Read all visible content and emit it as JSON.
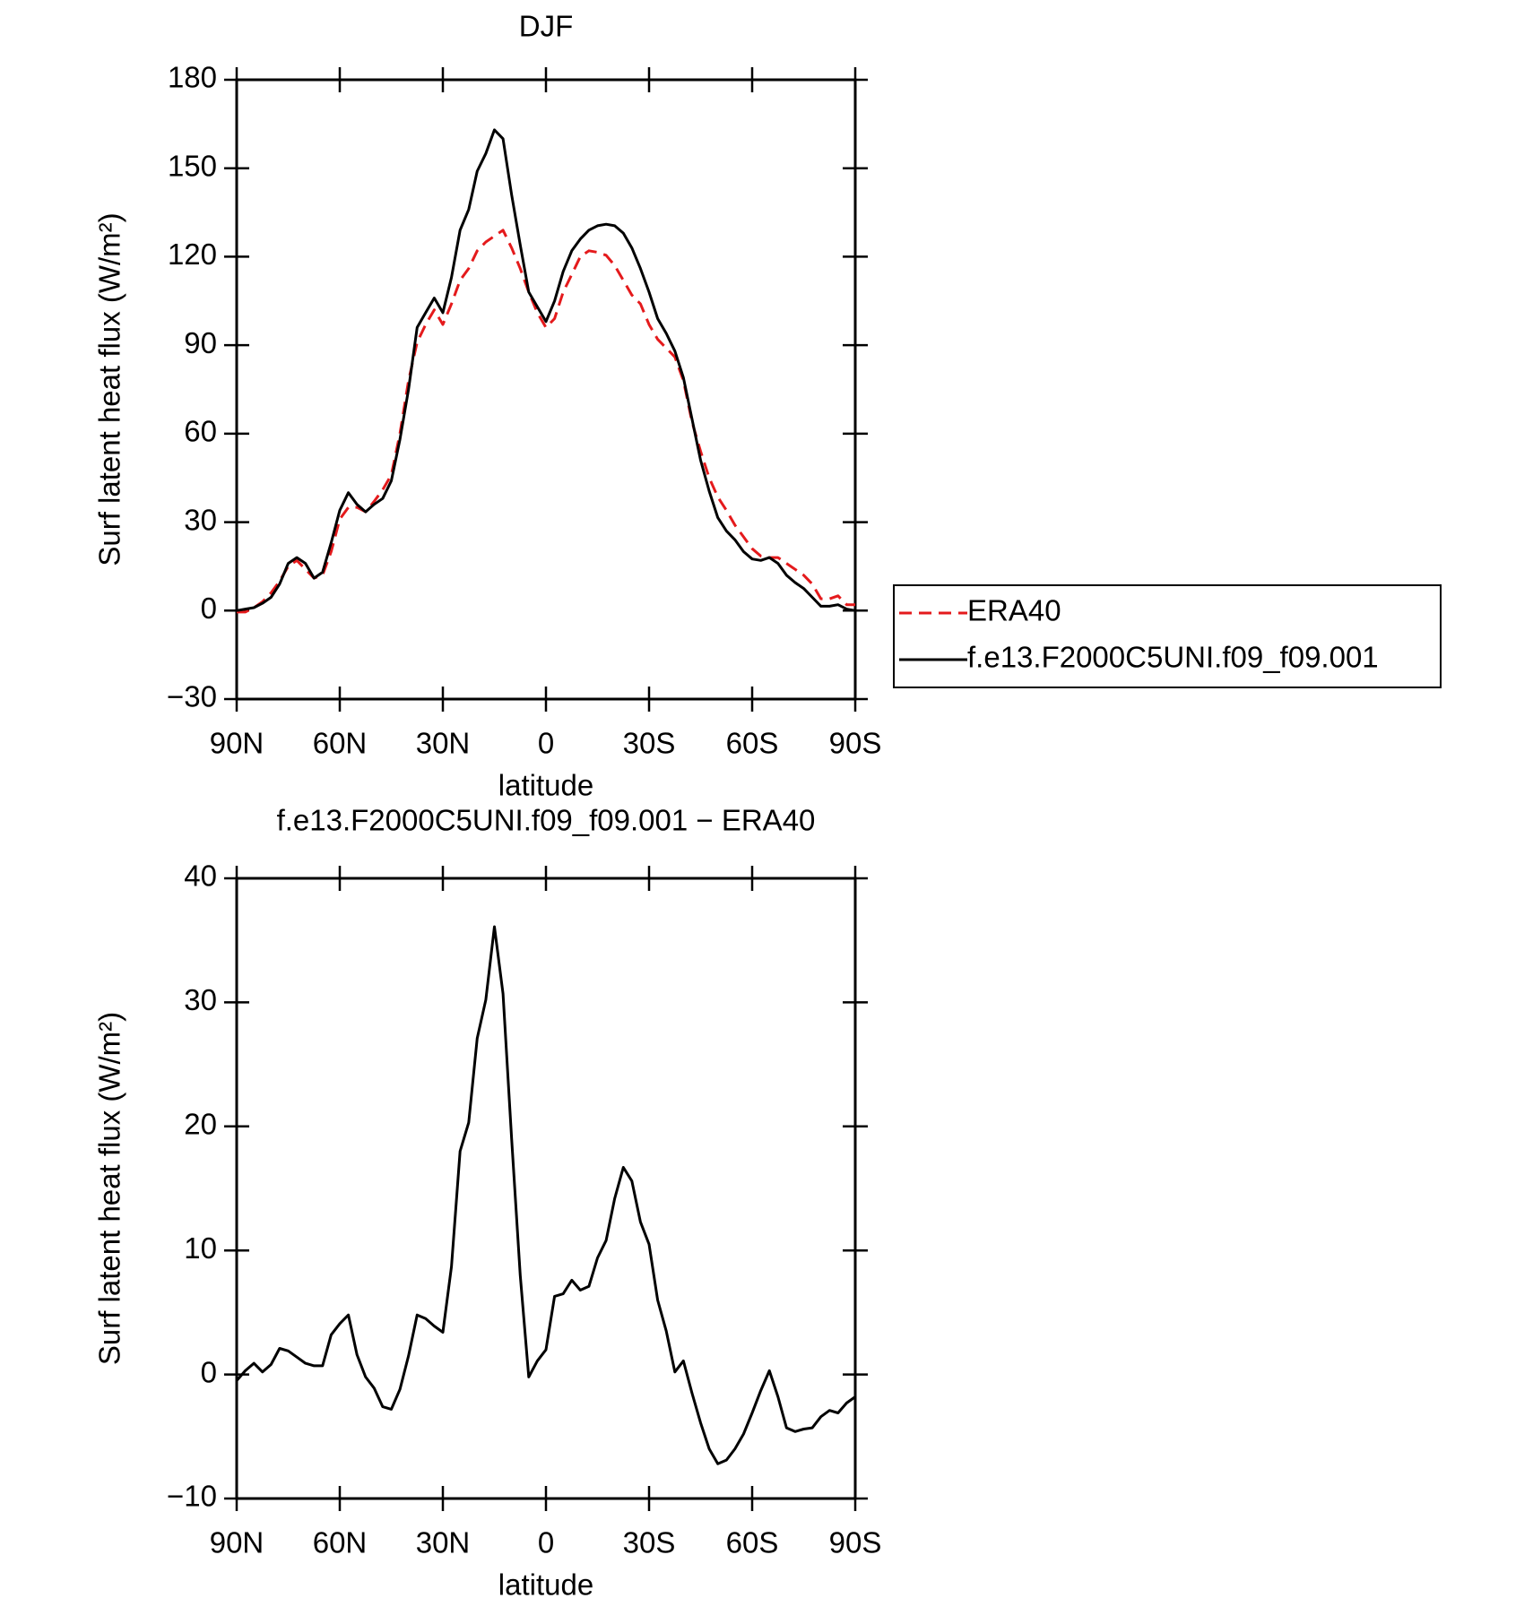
{
  "chart_data": [
    {
      "type": "line",
      "title": "DJF",
      "xlabel": "latitude",
      "ylabel": "Surf latent heat flux (W/m²)",
      "x": [
        90,
        87.5,
        85,
        82.5,
        80,
        77.5,
        75,
        72.5,
        70,
        67.5,
        65,
        62.5,
        60,
        57.5,
        55,
        52.5,
        50,
        47.5,
        45,
        42.5,
        40,
        37.5,
        35,
        32.5,
        30,
        27.5,
        25,
        22.5,
        20,
        17.5,
        15,
        12.5,
        10,
        7.5,
        5,
        2.5,
        0,
        -2.5,
        -5,
        -7.5,
        -10,
        -12.5,
        -15,
        -17.5,
        -20,
        -22.5,
        -25,
        -27.5,
        -30,
        -32.5,
        -35,
        -37.5,
        -40,
        -42.5,
        -45,
        -47.5,
        -50,
        -52.5,
        -55,
        -57.5,
        -60,
        -62.5,
        -65,
        -67.5,
        -70,
        -72.5,
        -75,
        -77.5,
        -80,
        -82.5,
        -85,
        -87.5,
        -90
      ],
      "series": [
        {
          "name": "ERA40",
          "color": "#e41a1c",
          "style": "dashed",
          "values": [
            -0.5,
            -0.5,
            1,
            3,
            6,
            10,
            15,
            17,
            14,
            11,
            12,
            20,
            31,
            35,
            35,
            33.5,
            37,
            41,
            46,
            60,
            78,
            91,
            97,
            102,
            97,
            104,
            112,
            116,
            122,
            125,
            127,
            129,
            123,
            116,
            108,
            101,
            96,
            99,
            108,
            114,
            120,
            122,
            121.5,
            120.5,
            117,
            112,
            107,
            104,
            97,
            92,
            89,
            86,
            78,
            64,
            54,
            45,
            38.5,
            34,
            29,
            25,
            21,
            18.5,
            18,
            18,
            16,
            14,
            12,
            9,
            4,
            4,
            5,
            2,
            2
          ]
        },
        {
          "name": "f.e13.F2000C5UNI.f09_f09.001",
          "color": "#000000",
          "style": "solid",
          "values": [
            0,
            0.5,
            1,
            2.5,
            4.5,
            9,
            16,
            18,
            16,
            11,
            13,
            23,
            34,
            40,
            36,
            33.5,
            36,
            38,
            44,
            58,
            75,
            96,
            101,
            106,
            101,
            113,
            129,
            136,
            149,
            155,
            163,
            160,
            141,
            124,
            108,
            103,
            98,
            105,
            115,
            122,
            126,
            129,
            130.5,
            131,
            130.5,
            128,
            123,
            116,
            108,
            99,
            94,
            88,
            79,
            65,
            51,
            40.5,
            31.5,
            27,
            24,
            20,
            17.5,
            17,
            18,
            16,
            12,
            9.5,
            7.5,
            4.5,
            1.5,
            1.5,
            2,
            0.5,
            0
          ]
        }
      ],
      "xlim": [
        90,
        -90
      ],
      "xticks": [
        {
          "value": 90,
          "label": "90N"
        },
        {
          "value": 60,
          "label": "60N"
        },
        {
          "value": 30,
          "label": "30N"
        },
        0,
        {
          "value": -30,
          "label": "30S"
        },
        {
          "value": -60,
          "label": "60S"
        },
        {
          "value": -90,
          "label": "90S"
        }
      ],
      "ylim": [
        -30,
        180
      ],
      "yticks": [
        {
          "value": -30,
          "label": "−30"
        },
        0,
        30,
        60,
        90,
        120,
        150,
        180
      ],
      "legend": "right"
    },
    {
      "type": "line",
      "title": "f.e13.F2000C5UNI.f09_f09.001 − ERA40",
      "xlabel": "latitude",
      "ylabel": "Surf latent heat flux (W/m²)",
      "x": [
        90,
        87.5,
        85,
        82.5,
        80,
        77.5,
        75,
        72.5,
        70,
        67.5,
        65,
        62.5,
        60,
        57.5,
        55,
        52.5,
        50,
        47.5,
        45,
        42.5,
        40,
        37.5,
        35,
        32.5,
        30,
        27.5,
        25,
        22.5,
        20,
        17.5,
        15,
        12.5,
        10,
        7.5,
        5,
        2.5,
        0,
        -2.5,
        -5,
        -7.5,
        -10,
        -12.5,
        -15,
        -17.5,
        -20,
        -22.5,
        -25,
        -27.5,
        -30,
        -32.5,
        -35,
        -37.5,
        -40,
        -42.5,
        -45,
        -47.5,
        -50,
        -52.5,
        -55,
        -57.5,
        -60,
        -62.5,
        -65,
        -67.5,
        -70,
        -72.5,
        -75,
        -77.5,
        -80,
        -82.5,
        -85,
        -87.5,
        -90
      ],
      "series": [
        {
          "color": "#000000",
          "style": "solid",
          "values": [
            -0.5,
            0.3,
            0.9,
            0.2,
            0.8,
            2.1,
            1.9,
            1.4,
            0.9,
            0.7,
            0.7,
            3.2,
            4.1,
            4.8,
            1.6,
            -0.2,
            -1.1,
            -2.6,
            -2.8,
            -1.2,
            1.5,
            4.8,
            4.5,
            3.9,
            3.4,
            8.7,
            18,
            20.3,
            27.1,
            30.2,
            36.1,
            30.7,
            19,
            8,
            -0.2,
            1.1,
            2,
            6.3,
            6.5,
            7.6,
            6.8,
            7.1,
            9.4,
            10.8,
            14.2,
            16.7,
            15.6,
            12.3,
            10.5,
            6,
            3.5,
            0.2,
            1.1,
            -1.5,
            -3.9,
            -6,
            -7.2,
            -6.9,
            -6,
            -4.8,
            -3.1,
            -1.3,
            0.3,
            -1.8,
            -4.3,
            -4.6,
            -4.4,
            -4.3,
            -3.4,
            -2.9,
            -3.1,
            -2.3,
            -1.8
          ]
        }
      ],
      "xlim": [
        90,
        -90
      ],
      "xticks": [
        {
          "value": 90,
          "label": "90N"
        },
        {
          "value": 60,
          "label": "60N"
        },
        {
          "value": 30,
          "label": "30N"
        },
        0,
        {
          "value": -30,
          "label": "30S"
        },
        {
          "value": -60,
          "label": "60S"
        },
        {
          "value": -90,
          "label": "90S"
        }
      ],
      "ylim": [
        -10,
        40
      ],
      "yticks": [
        {
          "value": -10,
          "label": "−10"
        },
        0,
        10,
        20,
        30,
        40
      ]
    }
  ]
}
